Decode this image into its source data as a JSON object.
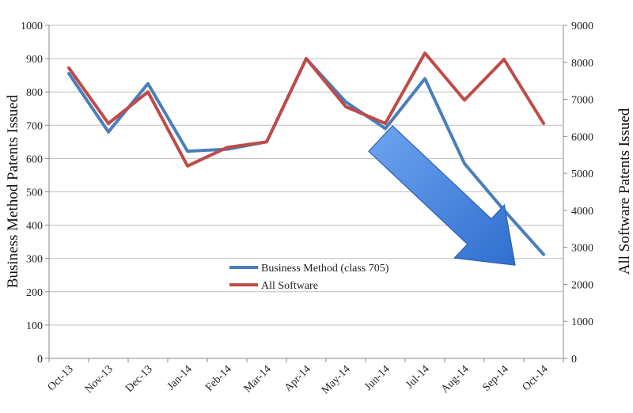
{
  "chart_data": {
    "type": "line",
    "title": "",
    "xlabel": "",
    "ylabel": "Business Method Patents Issued",
    "y2label": "All Software Patents Issued",
    "categories": [
      "Oct-13",
      "Nov-13",
      "Dec-13",
      "Jan-14",
      "Feb-14",
      "Mar-14",
      "Apr-14",
      "May-14",
      "Jun-14",
      "Jul-14",
      "Aug-14",
      "Sep-14",
      "Oct-14"
    ],
    "ylim": [
      0,
      1000
    ],
    "y2lim": [
      0,
      9000
    ],
    "yticks": [
      "0",
      "100",
      "200",
      "300",
      "400",
      "500",
      "600",
      "700",
      "800",
      "900",
      "1000"
    ],
    "y2ticks": [
      "0",
      "1000",
      "2000",
      "3000",
      "4000",
      "5000",
      "6000",
      "7000",
      "8000",
      "9000"
    ],
    "grid": true,
    "legend_position": "center-bottom",
    "series": [
      {
        "name": "Business Method (class 705)",
        "axis": "left",
        "color": "#4a7ebb",
        "values": [
          855,
          680,
          825,
          622,
          628,
          650,
          900,
          770,
          690,
          840,
          585,
          445,
          312
        ]
      },
      {
        "name": "All Software",
        "axis": "right",
        "color": "#be4b48",
        "values": [
          7850,
          6350,
          7200,
          5200,
          5700,
          5850,
          8100,
          6800,
          6350,
          8250,
          6980,
          8080,
          6350
        ]
      }
    ],
    "annotation": {
      "kind": "downward-arrow",
      "color": "#3b7ad9",
      "from": {
        "category": "Jun-14",
        "value": 660
      },
      "to": {
        "category": "Sep-14",
        "value": 280
      }
    }
  }
}
